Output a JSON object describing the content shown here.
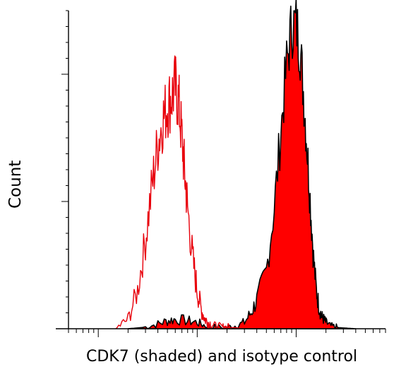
{
  "chart_data": {
    "type": "area",
    "title": "",
    "xlabel": "CDK7 (shaded) and isotype control",
    "ylabel": "Count",
    "xscale": "log",
    "xlim": [
      0.5,
      800
    ],
    "ylim": [
      0,
      100
    ],
    "grid": false,
    "legend": "none",
    "series": [
      {
        "style": "filled",
        "color": "#ff0000",
        "edge_color": "#000000",
        "x": [
          2.0,
          3.0,
          4.0,
          5.0,
          6.0,
          8.0,
          10.0,
          12.0,
          15.0,
          20.0,
          25.0,
          30.0,
          35.0,
          40.0,
          50.0,
          60.0,
          70.0,
          80.0,
          90.0,
          100.0,
          110.0,
          120.0,
          130.0,
          140.0,
          150.0,
          160.0,
          170.0,
          180.0,
          190.0,
          200.0,
          220.0,
          250.0,
          280.0,
          320.0,
          400.0
        ],
        "y": [
          0,
          0.5,
          1.5,
          2.5,
          3,
          2.5,
          2,
          1,
          0.5,
          0.5,
          1,
          2,
          5,
          9,
          18,
          38,
          62,
          83,
          95,
          96,
          88,
          72,
          55,
          38,
          22,
          12,
          7,
          4,
          3,
          2,
          1,
          0.5,
          0.3,
          0.2,
          0
        ]
      },
      {
        "style": "line",
        "color": "#e8000b",
        "x": [
          1.5,
          2.0,
          2.5,
          3.0,
          3.5,
          4.0,
          4.5,
          5.0,
          5.5,
          6.0,
          6.5,
          7.0,
          7.5,
          8.0,
          9.0,
          10.0,
          11.0,
          12.0,
          13.0,
          15.0,
          18.0,
          20.0,
          25.0,
          30.0
        ],
        "y": [
          0,
          3,
          12,
          28,
          45,
          58,
          66,
          70,
          73,
          76,
          71,
          60,
          48,
          38,
          22,
          12,
          6,
          3,
          2,
          1,
          0.5,
          0.5,
          0.3,
          0
        ]
      }
    ]
  }
}
